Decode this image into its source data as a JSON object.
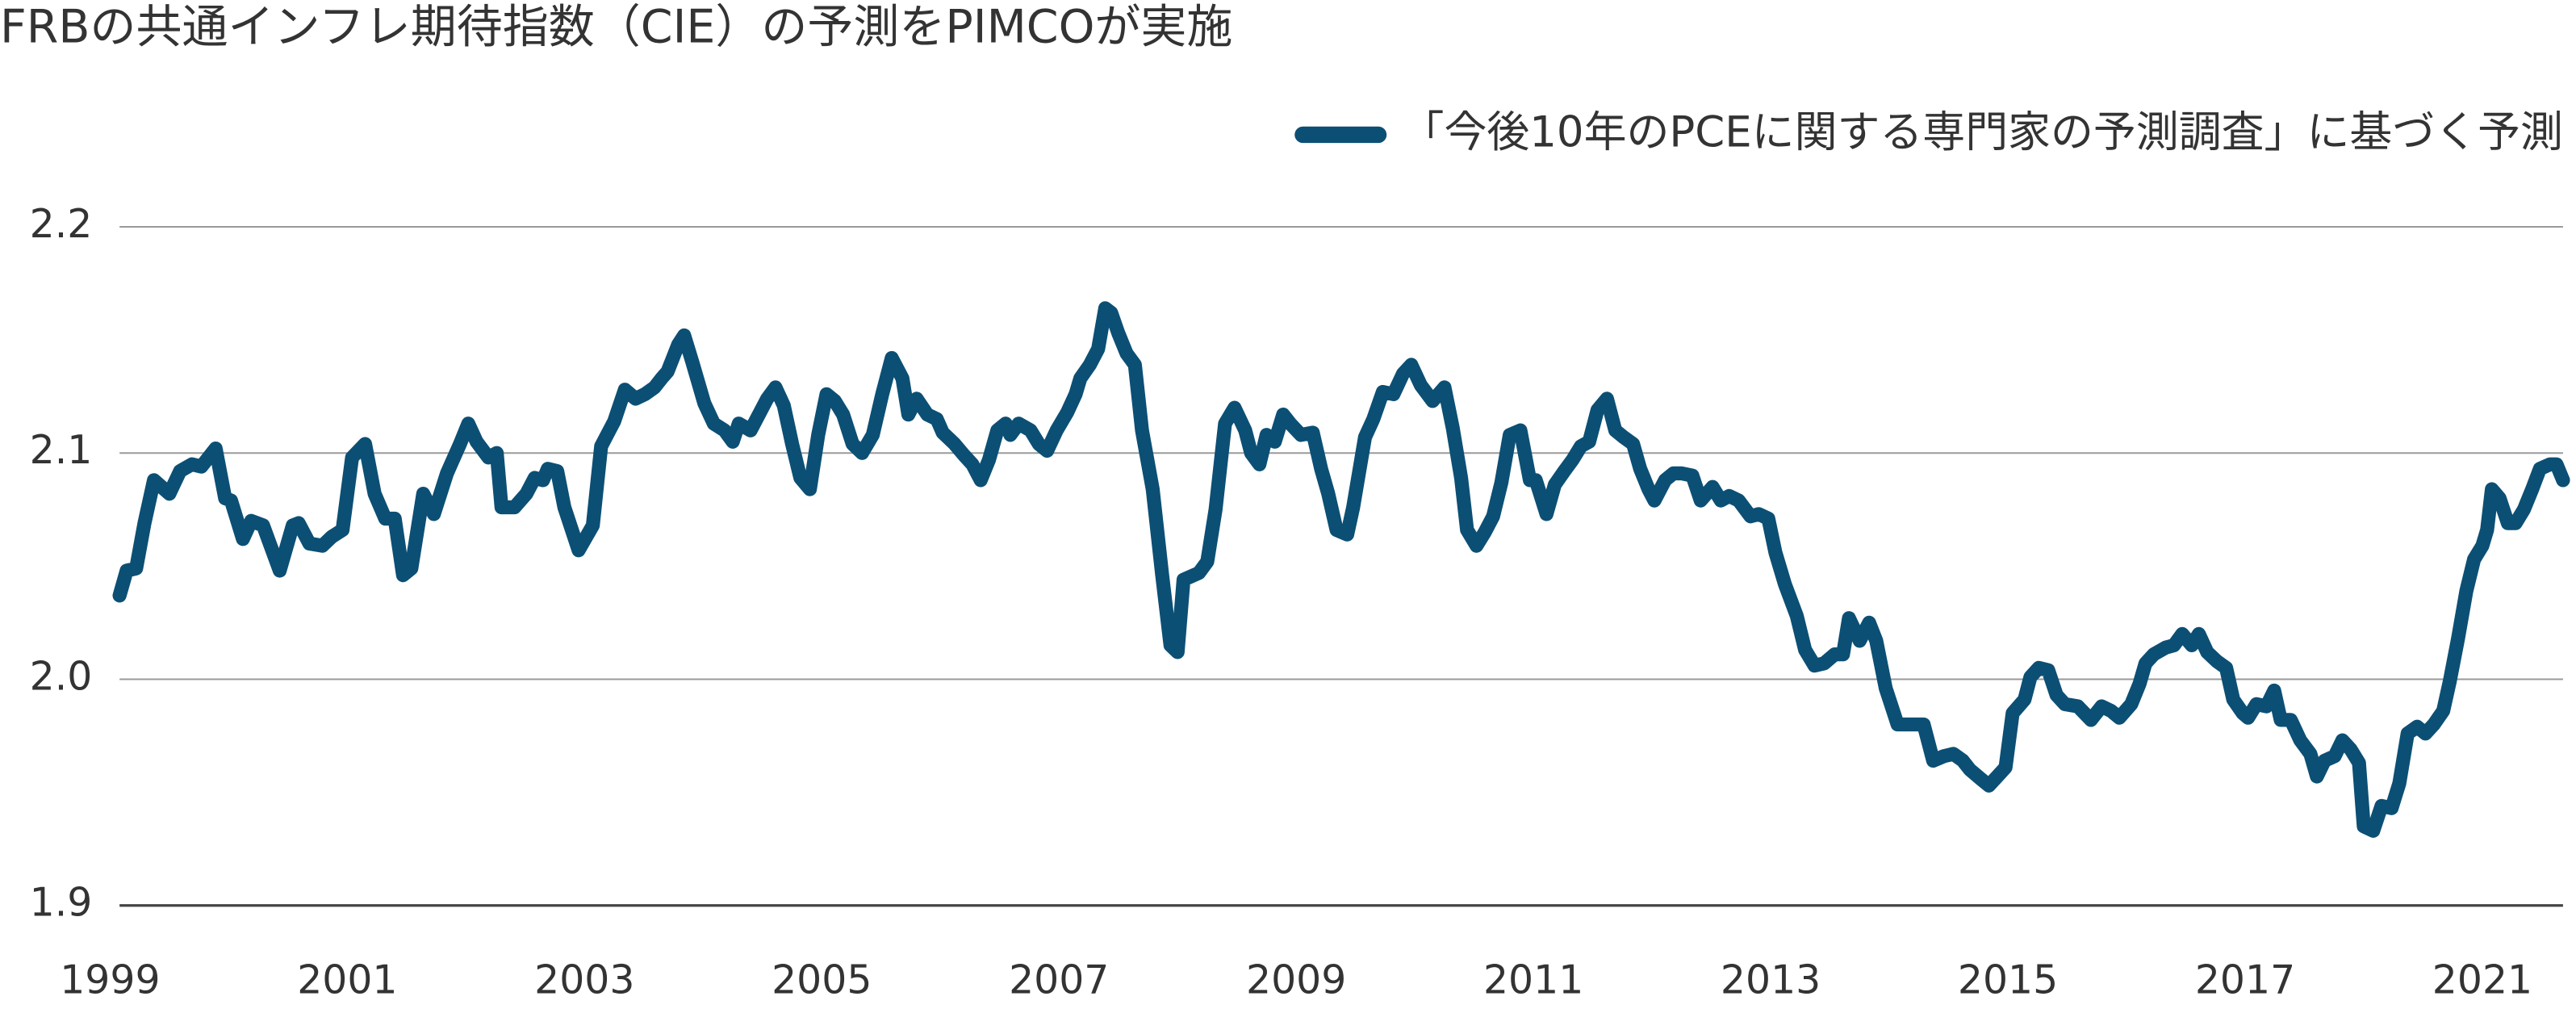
{
  "chart_data": {
    "type": "line",
    "title": "FRBの共通インフレ期待指数（CIE）の予測をPIMCOが実施",
    "x": [
      1999.08,
      1999.14,
      1999.22,
      1999.29,
      1999.37,
      1999.5,
      1999.59,
      1999.69,
      1999.77,
      1999.89,
      1999.97,
      2000.02,
      2000.12,
      2000.19,
      2000.29,
      2000.43,
      2000.54,
      2000.59,
      2000.68,
      2000.79,
      2000.87,
      2000.96,
      2001.04,
      2001.15,
      2001.23,
      2001.32,
      2001.4,
      2001.47,
      2001.54,
      2001.64,
      2001.73,
      2001.84,
      2001.95,
      2002.02,
      2002.09,
      2002.19,
      2002.26,
      2002.3,
      2002.41,
      2002.51,
      2002.58,
      2002.65,
      2002.69,
      2002.77,
      2002.83,
      2002.95,
      2003.07,
      2003.14,
      2003.25,
      2003.34,
      2003.43,
      2003.51,
      2003.59,
      2003.65,
      2003.7,
      2003.79,
      2003.84,
      2003.91,
      2004.01,
      2004.09,
      2004.18,
      2004.25,
      2004.3,
      2004.4,
      2004.47,
      2004.54,
      2004.61,
      2004.68,
      2004.75,
      2004.82,
      2004.9,
      2004.97,
      2005.04,
      2005.11,
      2005.18,
      2005.26,
      2005.34,
      2005.43,
      2005.51,
      2005.59,
      2005.68,
      2005.73,
      2005.8,
      2005.89,
      2005.97,
      2006.02,
      2006.12,
      2006.2,
      2006.27,
      2006.34,
      2006.41,
      2006.48,
      2006.55,
      2006.59,
      2006.66,
      2006.76,
      2006.83,
      2006.9,
      2006.98,
      2007.07,
      2007.14,
      2007.18,
      2007.26,
      2007.33,
      2007.39,
      2007.44,
      2007.5,
      2007.57,
      2007.64,
      2007.7,
      2007.79,
      2007.87,
      2007.94,
      2008.0,
      2008.05,
      2008.18,
      2008.25,
      2008.32,
      2008.4,
      2008.48,
      2008.57,
      2008.62,
      2008.69,
      2008.75,
      2008.82,
      2008.89,
      2008.95,
      2009.04,
      2009.14,
      2009.21,
      2009.27,
      2009.34,
      2009.43,
      2009.48,
      2009.58,
      2009.65,
      2009.73,
      2009.82,
      2009.9,
      2009.97,
      2010.05,
      2010.15,
      2010.25,
      2010.32,
      2010.39,
      2010.44,
      2010.52,
      2010.59,
      2010.66,
      2010.73,
      2010.8,
      2010.89,
      2010.97,
      2011.02,
      2011.11,
      2011.18,
      2011.26,
      2011.33,
      2011.4,
      2011.47,
      2011.54,
      2011.62,
      2011.69,
      2011.76,
      2011.84,
      2011.9,
      2011.97,
      2012.02,
      2012.11,
      2012.18,
      2012.25,
      2012.34,
      2012.41,
      2012.51,
      2012.58,
      2012.65,
      2012.73,
      2012.83,
      2012.9,
      2012.98,
      2013.04,
      2013.12,
      2013.22,
      2013.29,
      2013.37,
      2013.45,
      2013.54,
      2013.61,
      2013.66,
      2013.75,
      2013.83,
      2013.89,
      2013.97,
      2014.07,
      2014.18,
      2014.29,
      2014.37,
      2014.46,
      2014.54,
      2014.62,
      2014.68,
      2014.77,
      2014.84,
      2014.91,
      2014.98,
      2015.04,
      2015.14,
      2015.19,
      2015.26,
      2015.34,
      2015.41,
      2015.48,
      2015.59,
      2015.7,
      2015.79,
      2015.87,
      2015.94,
      2016.04,
      2016.11,
      2016.16,
      2016.23,
      2016.33,
      2016.4,
      2016.47,
      2016.55,
      2016.61,
      2016.68,
      2016.76,
      2016.84,
      2016.9,
      2016.98,
      2017.05,
      2017.19,
      2017.36,
      2017.49,
      2017.6,
      2017.77,
      2017.93,
      2018.1,
      2018.21,
      2018.34,
      2018.51,
      2018.64,
      2018.78,
      2018.92,
      2019.0,
      2019.16,
      2019.3,
      2019.47,
      2019.6,
      2019.74,
      2019.9,
      2020.04,
      2020.18,
      2020.34,
      2020.45,
      2020.59,
      2020.73,
      2020.86,
      2021.0,
      2021.08,
      2021.16,
      2021.29,
      2021.43,
      2021.56,
      2021.7,
      2021.84,
      2021.97,
      2022.14,
      2022.25,
      2022.36
    ],
    "series": [
      {
        "name": "「今後10年のPCEに関する専門家の予測調査」に基づく予測",
        "color": "#0c4f74",
        "values": [
          2.037,
          2.048,
          2.049,
          2.069,
          2.088,
          2.082,
          2.092,
          2.095,
          2.094,
          2.102,
          2.08,
          2.079,
          2.062,
          2.07,
          2.068,
          2.048,
          2.068,
          2.069,
          2.06,
          2.059,
          2.063,
          2.066,
          2.098,
          2.104,
          2.082,
          2.071,
          2.071,
          2.046,
          2.049,
          2.082,
          2.073,
          2.091,
          2.104,
          2.113,
          2.105,
          2.098,
          2.1,
          2.076,
          2.076,
          2.082,
          2.089,
          2.088,
          2.093,
          2.092,
          2.076,
          2.057,
          2.068,
          2.103,
          2.114,
          2.128,
          2.124,
          2.126,
          2.129,
          2.133,
          2.136,
          2.148,
          2.152,
          2.14,
          2.122,
          2.113,
          2.11,
          2.105,
          2.113,
          2.11,
          2.117,
          2.124,
          2.129,
          2.121,
          2.104,
          2.089,
          2.084,
          2.108,
          2.126,
          2.123,
          2.117,
          2.104,
          2.1,
          2.108,
          2.126,
          2.142,
          2.133,
          2.117,
          2.124,
          2.117,
          2.115,
          2.109,
          2.104,
          2.099,
          2.095,
          2.088,
          2.097,
          2.11,
          2.113,
          2.108,
          2.113,
          2.11,
          2.104,
          2.101,
          2.11,
          2.118,
          2.126,
          2.133,
          2.139,
          2.146,
          2.164,
          2.162,
          2.153,
          2.144,
          2.139,
          2.11,
          2.084,
          2.046,
          2.015,
          2.012,
          2.044,
          2.047,
          2.052,
          2.075,
          2.113,
          2.12,
          2.11,
          2.1,
          2.095,
          2.108,
          2.105,
          2.117,
          2.113,
          2.108,
          2.109,
          2.093,
          2.082,
          2.066,
          2.064,
          2.076,
          2.107,
          2.115,
          2.127,
          2.126,
          2.135,
          2.139,
          2.13,
          2.123,
          2.129,
          2.111,
          2.089,
          2.066,
          2.059,
          2.065,
          2.072,
          2.087,
          2.108,
          2.11,
          2.088,
          2.088,
          2.073,
          2.086,
          2.092,
          2.097,
          2.103,
          2.105,
          2.119,
          2.124,
          2.11,
          2.107,
          2.104,
          2.093,
          2.084,
          2.079,
          2.088,
          2.091,
          2.091,
          2.09,
          2.079,
          2.085,
          2.079,
          2.081,
          2.079,
          2.072,
          2.073,
          2.071,
          2.056,
          2.042,
          2.028,
          2.013,
          2.006,
          2.007,
          2.011,
          2.011,
          2.027,
          2.017,
          2.025,
          2.017,
          1.996,
          1.98,
          1.98,
          1.98,
          1.964,
          1.966,
          1.967,
          1.964,
          1.96,
          1.956,
          1.953,
          1.957,
          1.961,
          1.985,
          1.991,
          2.001,
          2.005,
          2.004,
          1.993,
          1.989,
          1.988,
          1.982,
          1.988,
          1.986,
          1.983,
          1.989,
          1.998,
          2.007,
          2.011,
          2.014,
          2.015,
          2.02,
          2.015,
          2.02,
          2.012,
          2.008,
          2.005,
          1.991,
          1.985,
          1.983,
          1.989,
          1.988,
          1.995,
          1.982,
          1.982,
          1.973,
          1.967,
          1.957,
          1.964,
          1.966,
          1.973,
          1.969,
          1.963,
          1.935,
          1.933,
          1.944,
          1.943,
          1.954,
          1.976,
          1.979,
          1.976,
          1.98,
          1.986,
          1.999,
          2.018,
          2.039,
          2.053,
          2.059,
          2.066,
          2.084,
          2.08,
          2.069,
          2.069,
          2.075,
          2.084,
          2.093,
          2.095,
          2.095,
          2.088
        ]
      }
    ],
    "xlim": [
      1999.08,
      2022.36
    ],
    "ylim": [
      1.9,
      2.2
    ],
    "xticks": [
      1999,
      2001,
      2003,
      2005,
      2007,
      2009,
      2011,
      2013,
      2015,
      2017,
      2021
    ],
    "yticks": [
      1.9,
      {
        "value": 2,
        "label": "2.0"
      },
      2.1,
      2.2
    ],
    "grid": true,
    "legend": "top-right"
  }
}
